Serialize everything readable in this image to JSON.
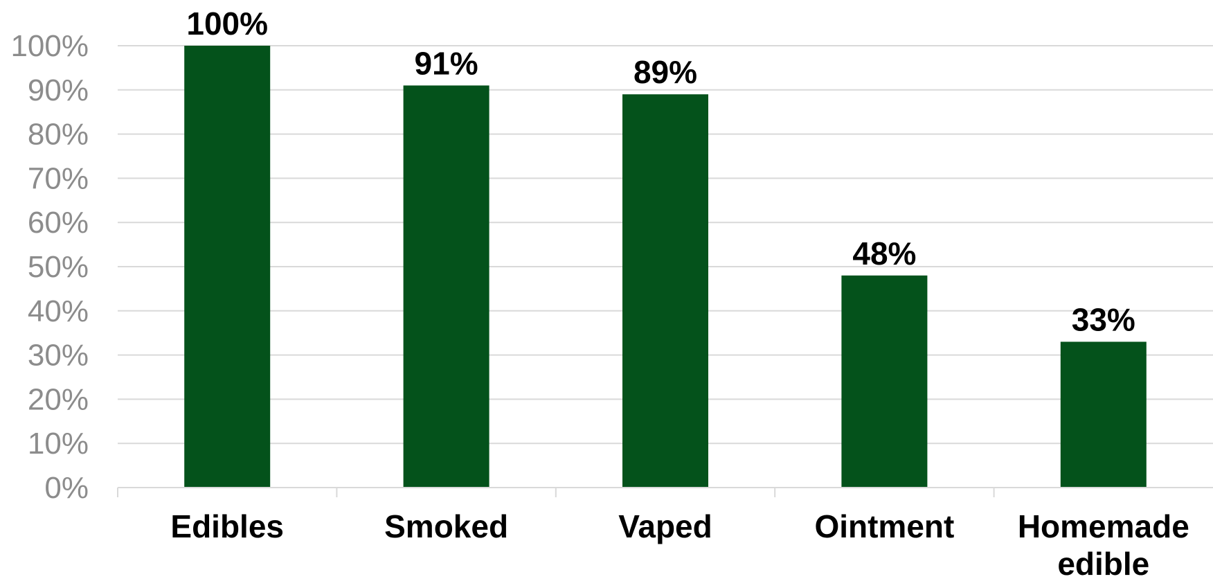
{
  "chart_data": {
    "type": "bar",
    "title": "",
    "xlabel": "",
    "ylabel": "",
    "categories": [
      [
        "Edibles"
      ],
      [
        "Smoked"
      ],
      [
        "Vaped"
      ],
      [
        "Ointment"
      ],
      [
        "Homemade",
        "edible"
      ]
    ],
    "values": [
      100,
      91,
      89,
      48,
      33
    ],
    "data_labels": [
      "100%",
      "91%",
      "89%",
      "48%",
      "33%"
    ],
    "yticks": [
      "0%",
      "10%",
      "20%",
      "30%",
      "40%",
      "50%",
      "60%",
      "70%",
      "80%",
      "90%",
      "100%"
    ],
    "ylim": [
      0,
      100
    ],
    "grid": true,
    "legend": "none",
    "colors": {
      "bar": "#04521b",
      "grid": "#d9d9d9",
      "tick_text": "#8c8c8c",
      "label_text": "#000000"
    }
  }
}
